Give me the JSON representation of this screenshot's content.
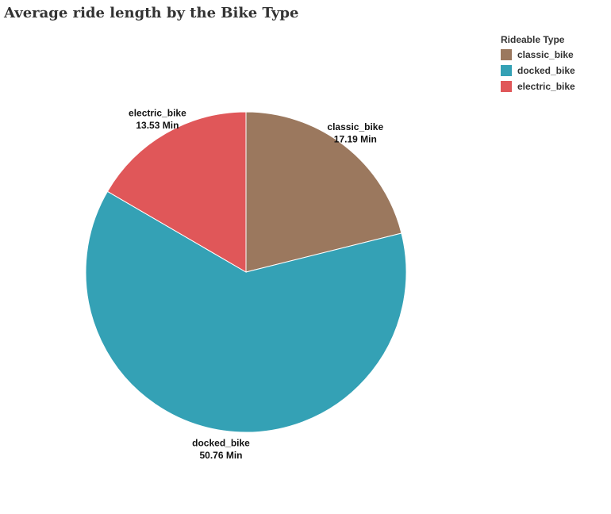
{
  "chart_data": {
    "type": "pie",
    "title": "Average ride length by the Bike Type",
    "legend_title": "Rideable Type",
    "legend_position": "top-right",
    "categories": [
      "classic_bike",
      "docked_bike",
      "electric_bike"
    ],
    "values": [
      17.19,
      50.76,
      13.53
    ],
    "value_labels": [
      "17.19 Min",
      "50.76 Min",
      "13.53 Min"
    ],
    "colors": [
      "#9b785e",
      "#34a1b5",
      "#e05759"
    ],
    "slices": [
      {
        "name": "classic_bike",
        "value": 17.19,
        "label": "17.19 Min",
        "color": "#9b785e"
      },
      {
        "name": "docked_bike",
        "value": 50.76,
        "label": "50.76 Min",
        "color": "#34a1b5"
      },
      {
        "name": "electric_bike",
        "value": 13.53,
        "label": "13.53 Min",
        "color": "#e05759"
      }
    ]
  }
}
